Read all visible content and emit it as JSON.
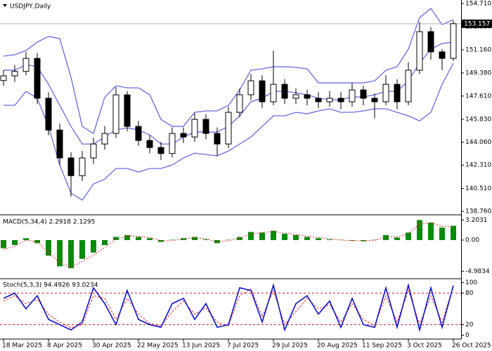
{
  "chart_data": [
    {
      "type": "candlestick",
      "title": "USDJPY,Daily",
      "categories": [
        "18 Mar 2025",
        null,
        null,
        null,
        "8 Apr 2025",
        null,
        null,
        null,
        "30 Apr 2025",
        null,
        null,
        null,
        "22 May 2025",
        null,
        null,
        null,
        "13 Jun 2025",
        null,
        null,
        null,
        "7 Jul 2025",
        null,
        null,
        null,
        "29 Jul 2025",
        null,
        null,
        null,
        "20 Aug 2025",
        null,
        null,
        null,
        "11 Sep 2025",
        null,
        null,
        null,
        "3 Oct 2025",
        null,
        null,
        null,
        "26 Oct 2025"
      ],
      "open": [
        148.8,
        149.16,
        149.5,
        150.5,
        147.44,
        145.0,
        142.86,
        141.5,
        142.86,
        143.93,
        144.74,
        147.7,
        145.28,
        144.2,
        143.66,
        143.2,
        144.74,
        144.47,
        145.82,
        144.74,
        143.93,
        146.36,
        147.71,
        148.78,
        147.17,
        148.51,
        147.44,
        147.71,
        147.44,
        147.17,
        147.44,
        147.17,
        148.08,
        147.44,
        147.17,
        148.51,
        147.17,
        149.59,
        152.55,
        151.0,
        150.5
      ],
      "high": [
        149.6,
        150.0,
        151.0,
        150.9,
        147.9,
        145.5,
        143.3,
        143.4,
        144.4,
        145.3,
        148.3,
        148.0,
        145.7,
        144.6,
        144.1,
        145.2,
        145.2,
        146.3,
        146.2,
        145.2,
        146.8,
        148.2,
        149.3,
        149.2,
        151.1,
        148.9,
        148.2,
        148.1,
        147.9,
        148.0,
        147.9,
        148.6,
        148.4,
        147.8,
        149.2,
        148.9,
        150.2,
        153.3,
        152.9,
        151.2,
        153.4
      ],
      "low": [
        148.4,
        148.7,
        149.2,
        147.0,
        144.6,
        142.3,
        139.9,
        141.1,
        142.4,
        143.5,
        144.4,
        144.9,
        143.8,
        143.2,
        142.7,
        142.9,
        144.0,
        144.1,
        144.3,
        143.0,
        143.6,
        146.0,
        147.3,
        146.7,
        146.9,
        147.0,
        147.0,
        146.9,
        146.7,
        146.8,
        146.6,
        146.8,
        146.9,
        145.9,
        146.9,
        146.6,
        146.9,
        149.3,
        150.4,
        149.6,
        150.3
      ],
      "close": [
        149.16,
        149.5,
        150.5,
        147.44,
        145.0,
        142.86,
        141.5,
        142.86,
        143.93,
        144.74,
        147.7,
        145.28,
        144.2,
        143.66,
        143.2,
        144.74,
        144.47,
        145.82,
        144.74,
        143.93,
        146.36,
        147.71,
        148.78,
        147.17,
        148.51,
        147.44,
        147.71,
        147.44,
        147.17,
        147.44,
        147.17,
        148.08,
        147.44,
        147.17,
        148.51,
        147.17,
        149.59,
        152.55,
        151.0,
        150.5,
        153.16
      ],
      "up_color": "#ffffff",
      "down_color": "#000000",
      "wick_color": "#000000",
      "bands": {
        "color": "#6a6ae0",
        "upper": [
          150.67,
          150.78,
          151.1,
          151.75,
          152.18,
          152.02,
          149.05,
          145.28,
          144.74,
          147.5,
          148.4,
          148.24,
          148.24,
          147.71,
          145.82,
          145.28,
          145.28,
          146.36,
          146.47,
          146.47,
          146.9,
          148.08,
          149.59,
          149.7,
          149.86,
          149.86,
          149.81,
          149.7,
          148.62,
          148.62,
          148.62,
          148.62,
          148.62,
          148.78,
          149.59,
          149.86,
          151.21,
          153.63,
          154.33,
          153.09,
          153.47
        ],
        "middle": [
          149.59,
          149.59,
          150.02,
          149.86,
          148.51,
          146.9,
          145.28,
          143.93,
          143.93,
          144.47,
          145.01,
          145.17,
          145.01,
          144.63,
          143.93,
          143.93,
          144.47,
          144.85,
          144.85,
          144.85,
          145.28,
          146.09,
          147.17,
          147.44,
          147.97,
          147.97,
          147.87,
          147.71,
          147.44,
          147.33,
          147.33,
          147.54,
          147.54,
          147.71,
          147.97,
          147.97,
          148.78,
          150.13,
          151.21,
          151.64,
          151.75
        ],
        "lower": [
          146.9,
          146.9,
          147.97,
          147.44,
          145.28,
          142.32,
          140.16,
          139.62,
          140.86,
          141.24,
          142.05,
          142.05,
          141.78,
          142.05,
          142.05,
          142.32,
          142.86,
          143.23,
          143.12,
          143.02,
          143.39,
          143.93,
          144.47,
          145.28,
          146.09,
          146.09,
          146.36,
          146.25,
          146.47,
          146.63,
          146.36,
          146.36,
          146.47,
          146.63,
          146.63,
          146.36,
          146.09,
          145.71,
          146.36,
          148.51,
          150.13
        ]
      },
      "last_price": {
        "value": 153.157,
        "label": "153.157"
      },
      "last_price_color": "#000000",
      "ylim": [
        138.55,
        154.98
      ],
      "yticks": [
        {
          "value": 154.71,
          "label": "154.710"
        },
        {
          "value": 152.93,
          "label": "152.930"
        },
        {
          "value": 151.16,
          "label": "151.160"
        },
        {
          "value": 149.38,
          "label": "149.380"
        },
        {
          "value": 147.61,
          "label": "147.610"
        },
        {
          "value": 145.83,
          "label": "145.830"
        },
        {
          "value": 144.06,
          "label": "144.060"
        },
        {
          "value": 142.31,
          "label": "142.310"
        },
        {
          "value": 140.51,
          "label": "140.510"
        },
        {
          "value": 138.76,
          "label": "138.760"
        }
      ]
    },
    {
      "type": "macd",
      "title": "MACD(5,34,4) 2.2918 2.1295",
      "histogram": [
        -1.3,
        -0.8,
        0.3,
        -0.5,
        -2.5,
        -4.2,
        -4.5,
        -3.0,
        -2.0,
        -0.8,
        0.5,
        0.8,
        0.5,
        0.3,
        -0.3,
        0.05,
        0.3,
        0.5,
        0.1,
        -0.5,
        0.05,
        0.5,
        1.3,
        1.2,
        1.5,
        1.0,
        0.8,
        0.5,
        0.3,
        0.1,
        0.05,
        -0.1,
        -0.2,
        0.05,
        0.8,
        0.4,
        1.2,
        3.2,
        2.8,
        2.0,
        2.29
      ],
      "signal": [
        -1.5,
        -1.0,
        0.0,
        -0.3,
        -2.0,
        -3.6,
        -4.3,
        -3.4,
        -2.4,
        -1.2,
        0.2,
        0.6,
        0.6,
        0.4,
        -0.1,
        -0.1,
        0.2,
        0.4,
        0.2,
        -0.3,
        -0.1,
        0.3,
        1.0,
        1.2,
        1.4,
        1.1,
        0.9,
        0.6,
        0.4,
        0.2,
        0.0,
        -0.1,
        -0.1,
        -0.05,
        0.5,
        0.5,
        1.0,
        2.6,
        2.8,
        2.2,
        2.13
      ],
      "histogram_color": "#0a8a0a",
      "signal_color": "#e03030",
      "ylim": [
        -6.07,
        3.93
      ],
      "yticks": [
        3.2031,
        {
          "value": 0,
          "label": "0.00"
        },
        -4.9834
      ]
    },
    {
      "type": "stochastic",
      "title": "Stoch(5,3,3) 94.4926 93.0234",
      "k": [
        70,
        80,
        50,
        75,
        30,
        20,
        10,
        25,
        90,
        60,
        20,
        85,
        30,
        20,
        15,
        60,
        70,
        30,
        60,
        15,
        20,
        90,
        85,
        25,
        95,
        10,
        60,
        75,
        40,
        65,
        15,
        70,
        20,
        15,
        90,
        15,
        95,
        10,
        90,
        15,
        94.49
      ],
      "d": [
        65,
        75,
        60,
        68,
        40,
        25,
        14,
        20,
        75,
        70,
        30,
        70,
        40,
        22,
        17,
        45,
        65,
        40,
        52,
        25,
        18,
        75,
        88,
        35,
        85,
        20,
        45,
        70,
        50,
        58,
        25,
        60,
        30,
        18,
        75,
        25,
        85,
        20,
        75,
        25,
        93.02
      ],
      "k_color": "#1010c8",
      "d_color": "#e03030",
      "level_color": "#d02020",
      "ylim": [
        -6,
        106
      ],
      "yticks": [
        100,
        80,
        20,
        0
      ],
      "levels": [
        80,
        20
      ]
    }
  ]
}
